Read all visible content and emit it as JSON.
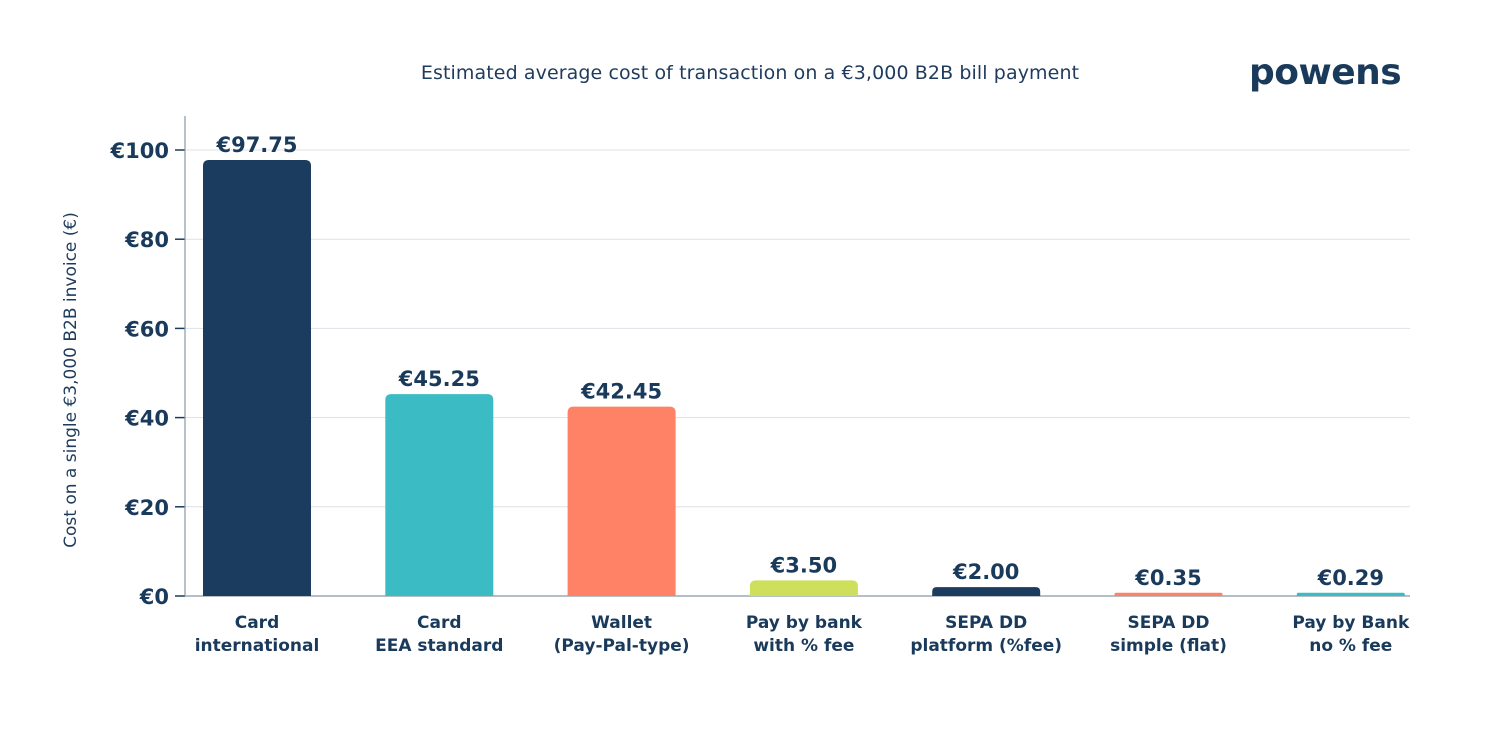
{
  "brand": {
    "logo_text": "powens"
  },
  "chart_data": {
    "type": "bar",
    "title": "Estimated average cost of transaction on a €3,000 B2B bill payment",
    "ylabel": "Cost on a single €3,000 B2B invoice (€)",
    "xlabel": "",
    "ylim": [
      0,
      100
    ],
    "yticks": [
      0,
      20,
      40,
      60,
      80,
      100
    ],
    "ytick_labels": [
      "€0",
      "€20",
      "€40",
      "€60",
      "€80",
      "€100"
    ],
    "grid": true,
    "categories": [
      [
        "Card",
        "international"
      ],
      [
        "Card",
        "EEA standard"
      ],
      [
        "Wallet",
        "(Pay-Pal-type)"
      ],
      [
        "Pay by bank",
        "with % fee"
      ],
      [
        "SEPA DD",
        "platform (%fee)"
      ],
      [
        "SEPA DD",
        "simple (flat)"
      ],
      [
        "Pay by Bank",
        "no % fee"
      ]
    ],
    "values": [
      97.75,
      45.25,
      42.45,
      3.5,
      2.0,
      0.35,
      0.29
    ],
    "value_labels": [
      "€97.75",
      "€45.25",
      "€42.45",
      "€3.50",
      "€2.00",
      "€0.35",
      "€0.29"
    ],
    "colors": [
      "#1b3b5f",
      "#3bbcc5",
      "#ff8266",
      "#cddf5b",
      "#1b3b5f",
      "#ff8266",
      "#3bbcc5"
    ]
  }
}
